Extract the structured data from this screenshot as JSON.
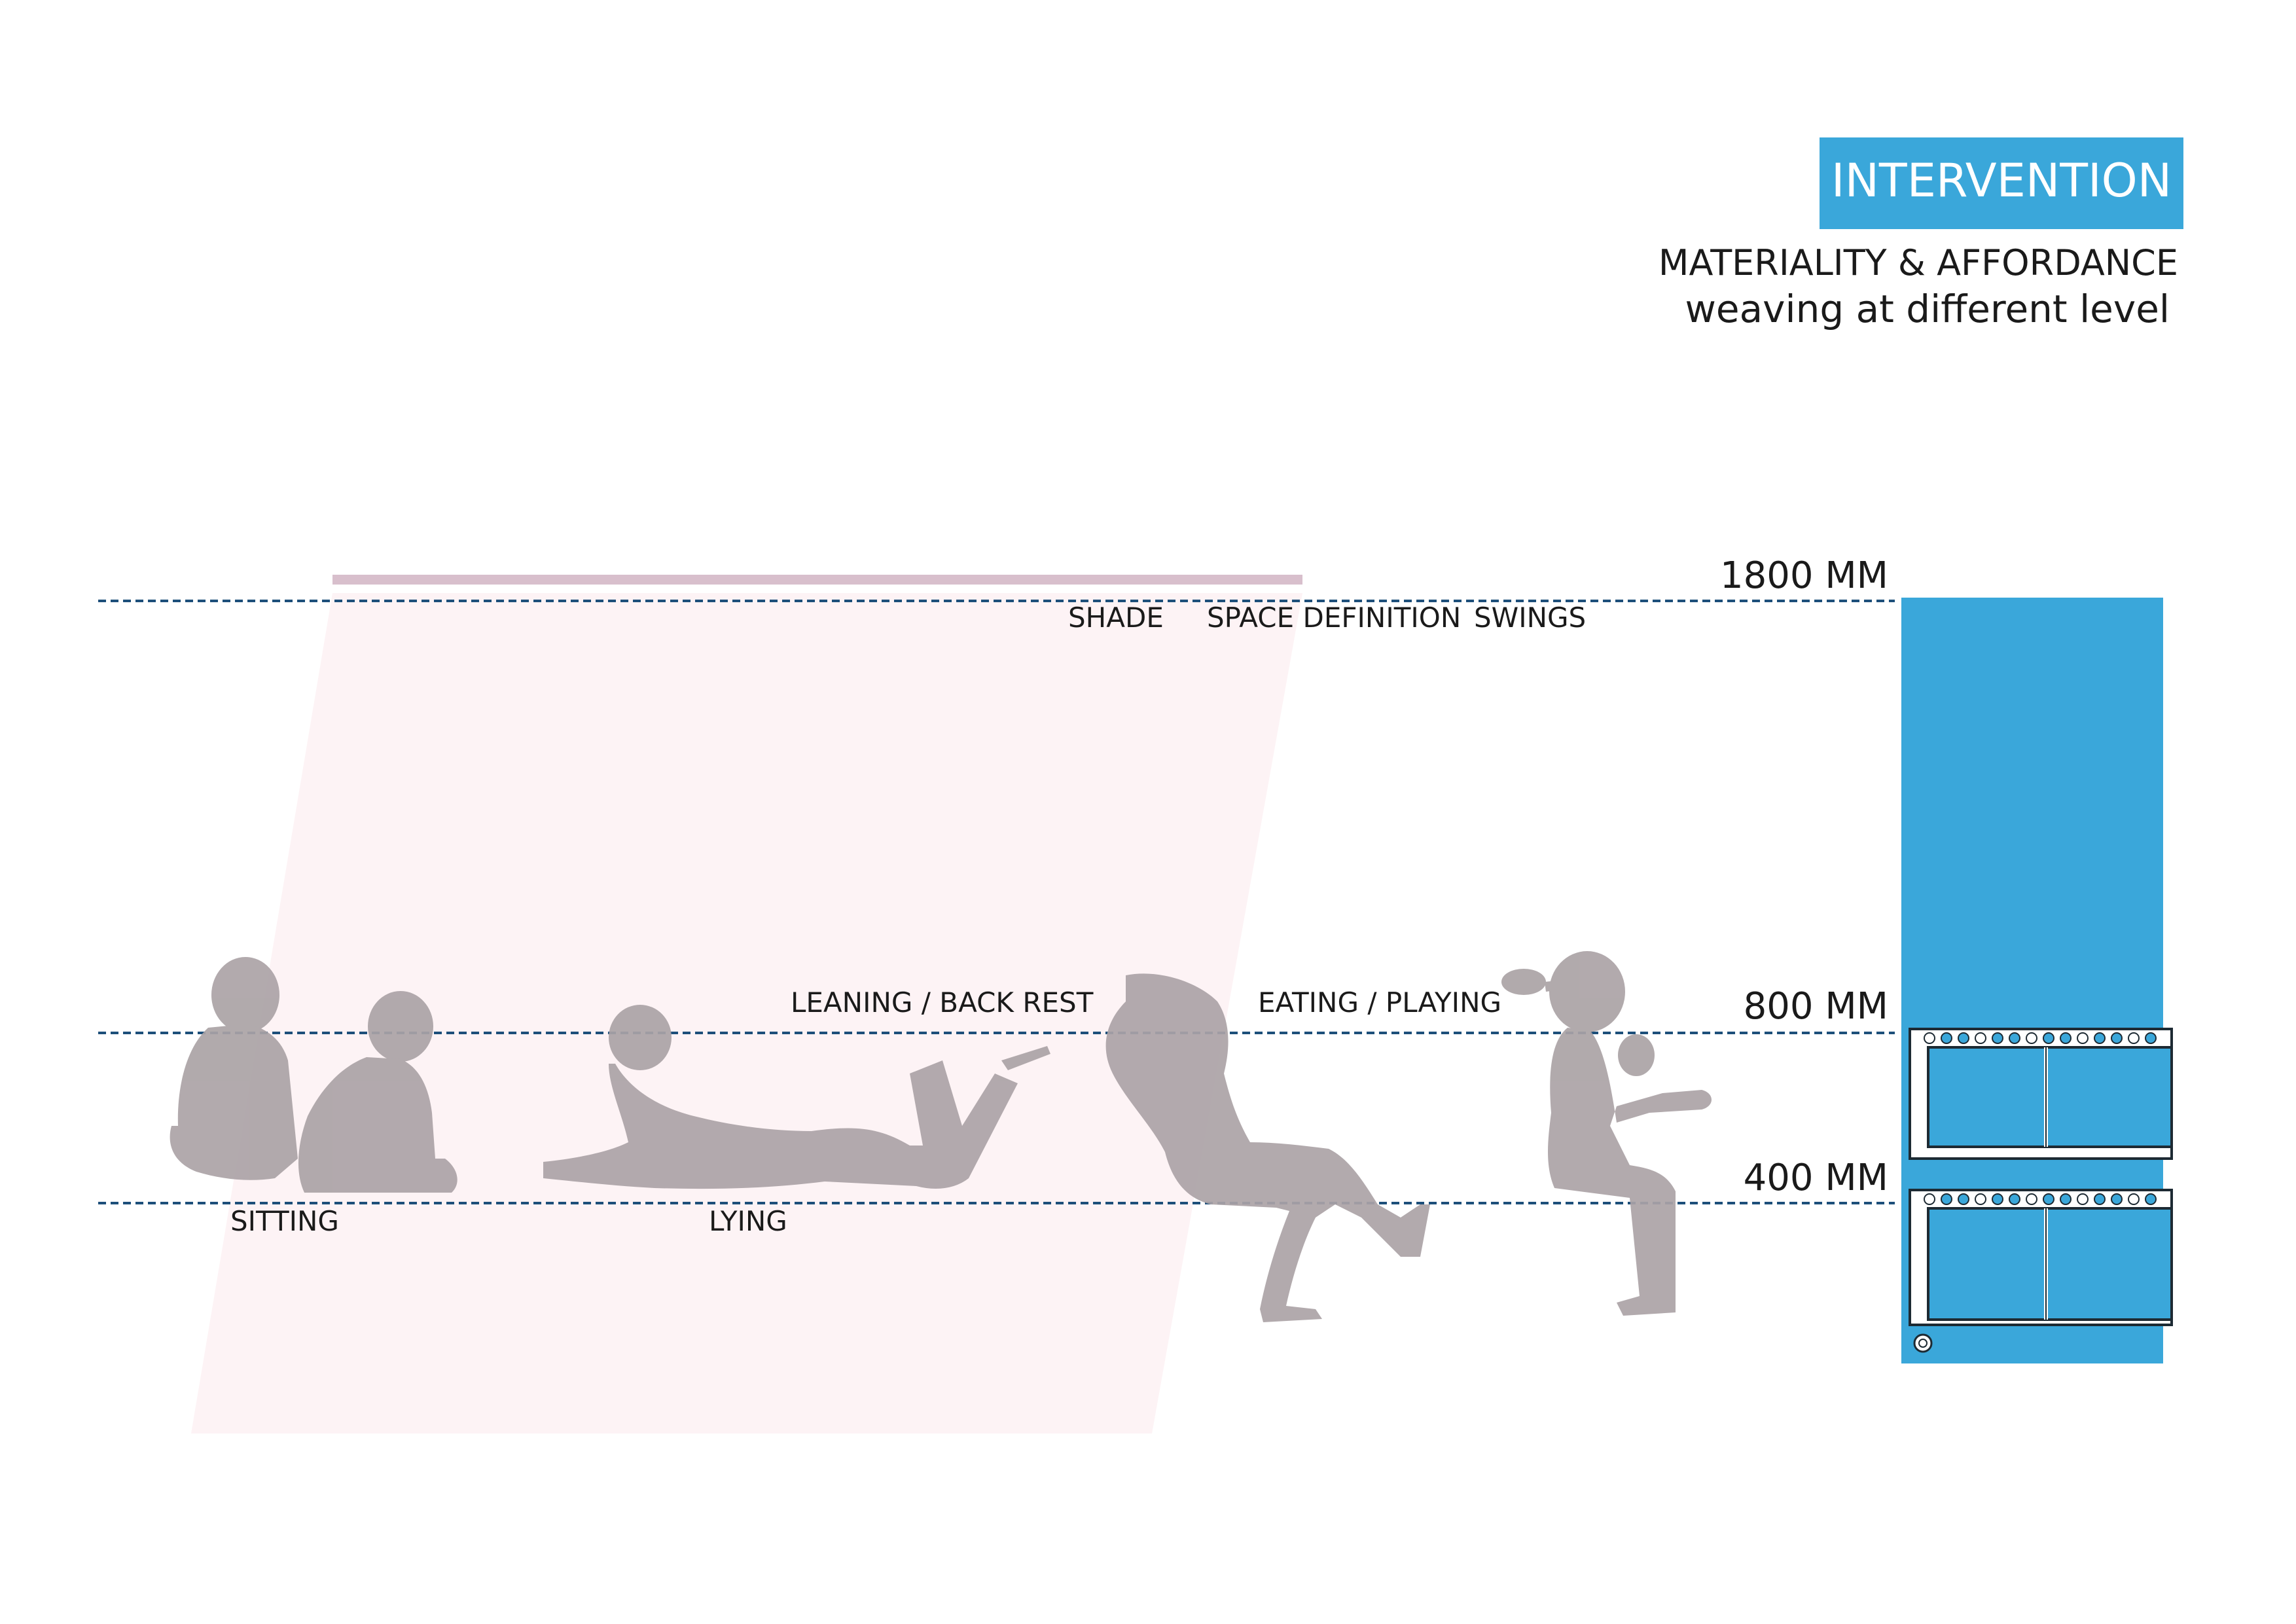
{
  "header": {
    "badge": "INTERVENTION",
    "subtitle": "MATERIALITY & AFFORDANCE",
    "subtitle2": "weaving at different level"
  },
  "colors": {
    "accent": "#3aa7da",
    "silhouette": "#aba3a6",
    "guide": "#1d4f7a",
    "shade_bar": "#d8bfcc",
    "shade_fill": "#fdf3f5"
  },
  "levels": [
    {
      "label": "1800 MM",
      "mm": 1800
    },
    {
      "label": "800 MM",
      "mm": 800
    },
    {
      "label": "400 MM",
      "mm": 400
    }
  ],
  "annotations": {
    "shade": "SHADE",
    "space_definition": "SPACE DEFINITION",
    "swings": "SWINGS",
    "leaning": "LEANING / BACK REST",
    "eating": "EATING / PLAYING",
    "sitting": "SITTING",
    "lying": "LYING"
  },
  "figures": [
    {
      "name": "sitting-group",
      "icon": "people-sitting-icon"
    },
    {
      "name": "lying-person",
      "icon": "person-lying-icon"
    },
    {
      "name": "leaning-person",
      "icon": "person-leaning-icon"
    },
    {
      "name": "swinging-child",
      "icon": "child-swinging-icon"
    }
  ],
  "weave_panel": {
    "icon": "weave-panel-icon"
  }
}
